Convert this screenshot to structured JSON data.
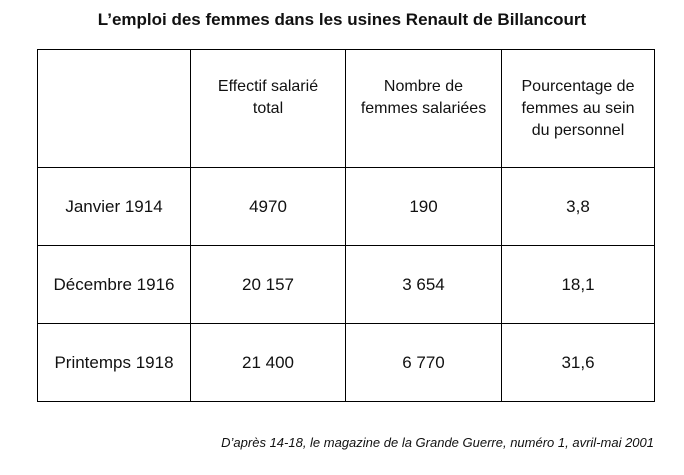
{
  "title": "L’emploi des femmes dans les usines Renault de Billancourt",
  "table": {
    "headers": [
      "",
      "Effectif salarié total",
      "Nombre de femmes salariées",
      "Pourcentage de femmes au sein du personnel"
    ],
    "rows": [
      [
        "Janvier 1914",
        "4970",
        "190",
        "3,8"
      ],
      [
        "Décembre 1916",
        "20 157",
        "3 654",
        "18,1"
      ],
      [
        "Printemps 1918",
        "21 400",
        "6 770",
        "31,6"
      ]
    ]
  },
  "source": "D’après 14-18, le magazine de la Grande Guerre, numéro 1, avril-mai 2001"
}
